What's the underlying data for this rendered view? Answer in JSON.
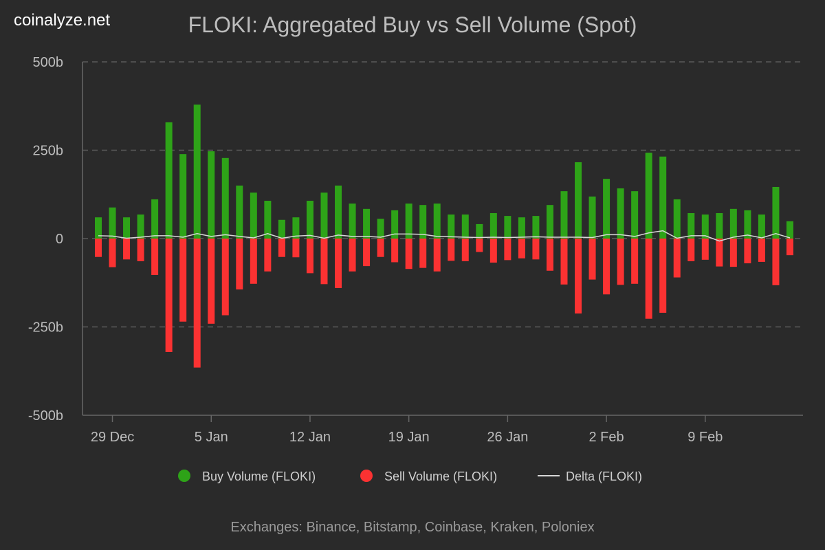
{
  "brand": "coinalyze.net",
  "footer": "Exchanges: Binance, Bitstamp, Coinbase, Kraken, Poloniex",
  "chart_data": {
    "type": "bar",
    "title": "FLOKI: Aggregated Buy vs Sell Volume (Spot)",
    "unit": "b",
    "ylim": [
      -500,
      500
    ],
    "yticks": [
      500,
      250,
      0,
      -250,
      -500
    ],
    "ytick_labels": [
      "500b",
      "250b",
      "0",
      "-250b",
      "-500b"
    ],
    "xtick_labels": [
      "29 Dec",
      "5 Jan",
      "12 Jan",
      "19 Jan",
      "26 Jan",
      "2 Feb",
      "9 Feb"
    ],
    "xtick_index": [
      1,
      8,
      15,
      22,
      29,
      36,
      43
    ],
    "grid": true,
    "legend_position": "bottom",
    "colors": {
      "buy": "#2ea318",
      "sell": "#fb3232",
      "delta": "#d8d8d8",
      "grid": "#5a5a5a"
    },
    "dates_range": [
      "28 Dec",
      "15 Feb"
    ],
    "series": [
      {
        "name": "Buy Volume (FLOKI)",
        "values": [
          60,
          88,
          60,
          68,
          111,
          329,
          239,
          379,
          247,
          228,
          150,
          130,
          107,
          53,
          60,
          107,
          130,
          150,
          99,
          84,
          56,
          80,
          99,
          95,
          99,
          68,
          68,
          41,
          72,
          64,
          60,
          64,
          95,
          134,
          216,
          119,
          169,
          142,
          134,
          243,
          232,
          111,
          72,
          68,
          72,
          84,
          80,
          68,
          146,
          49
        ]
      },
      {
        "name": "Sell Volume (FLOKI)",
        "values": [
          -52,
          -81,
          -59,
          -64,
          -103,
          -321,
          -235,
          -365,
          -241,
          -217,
          -144,
          -128,
          -93,
          -52,
          -53,
          -98,
          -129,
          -140,
          -93,
          -78,
          -52,
          -67,
          -86,
          -83,
          -93,
          -63,
          -64,
          -38,
          -68,
          -61,
          -56,
          -59,
          -91,
          -130,
          -212,
          -116,
          -158,
          -131,
          -128,
          -227,
          -210,
          -110,
          -64,
          -60,
          -79,
          -80,
          -70,
          -66,
          -132,
          -47
        ]
      },
      {
        "name": "Delta (FLOKI)",
        "values": [
          8,
          7,
          1,
          4,
          8,
          8,
          4,
          14,
          6,
          11,
          6,
          2,
          14,
          1,
          7,
          9,
          1,
          10,
          6,
          6,
          4,
          13,
          13,
          12,
          6,
          5,
          4,
          3,
          4,
          3,
          4,
          5,
          4,
          4,
          4,
          3,
          11,
          11,
          6,
          16,
          22,
          1,
          8,
          8,
          -7,
          4,
          10,
          2,
          14,
          2
        ]
      }
    ]
  }
}
